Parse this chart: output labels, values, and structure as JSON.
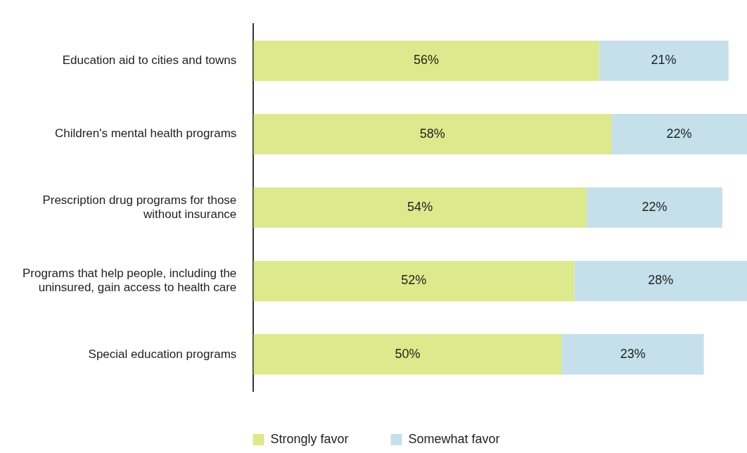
{
  "chart_data": {
    "type": "bar",
    "orientation": "horizontal",
    "stacked": true,
    "categories": [
      "Education aid to cities and towns",
      "Children's mental health programs",
      "Prescription drug programs for those without insurance",
      "Programs that help people, including the uninsured, gain access to health care",
      "Special education programs"
    ],
    "series": [
      {
        "name": "Strongly favor",
        "color": "#dce98c",
        "values": [
          56,
          58,
          54,
          52,
          50
        ],
        "value_labels": [
          "56%",
          "58%",
          "54%",
          "52%",
          "50%"
        ]
      },
      {
        "name": "Somewhat favor",
        "color": "#c5e0ea",
        "values": [
          21,
          22,
          22,
          28,
          23
        ],
        "value_labels": [
          "21%",
          "22%",
          "22%",
          "28%",
          "23%"
        ]
      }
    ],
    "legend": "bottom"
  }
}
